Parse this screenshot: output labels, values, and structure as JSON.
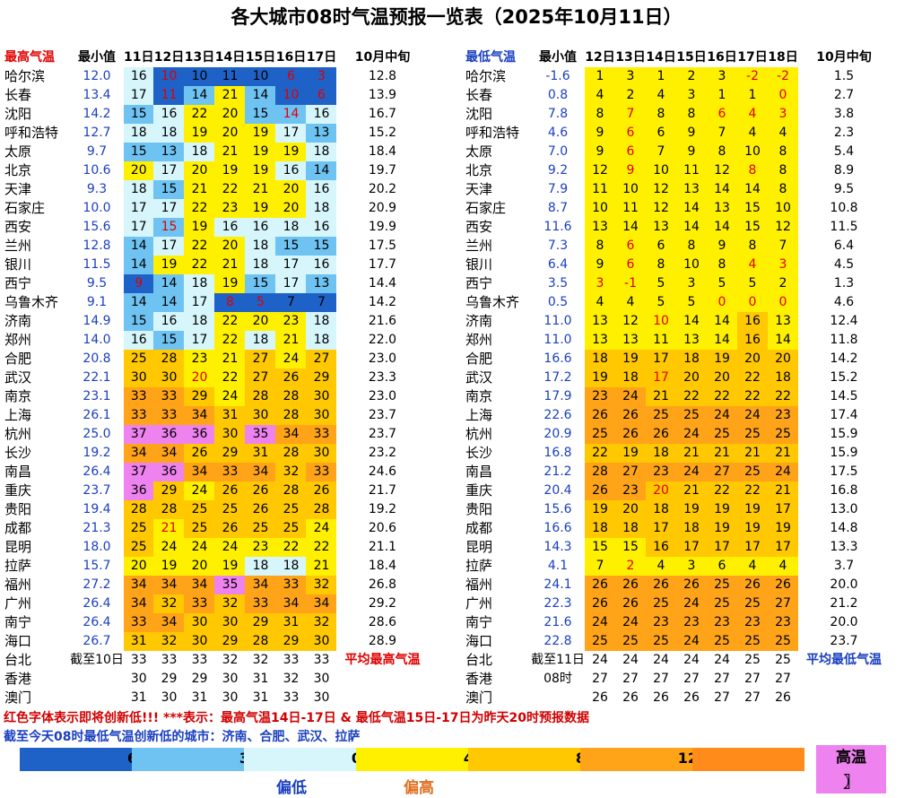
{
  "title": "各大城市08时气温预报一览表（2025年10月11日）",
  "colors": {
    "v1": "#1e62c8",
    "v2": "#6ec3f2",
    "v3": "#d6f6fb",
    "v4": "#fff000",
    "v5": "#ffc800",
    "v6": "#ffa318",
    "v7": "#ff8c1a",
    "hot": "#ee82ee",
    "red": "#e00000",
    "blue": "#1a3fc0"
  },
  "high": {
    "headers": [
      "最高气温",
      "最小值",
      "11日",
      "12日",
      "13日",
      "14日",
      "15日",
      "16日",
      "17日",
      "10月中旬"
    ],
    "footer_label": "平均最高气温",
    "rows": [
      {
        "city": "哈尔滨",
        "min": "12.0",
        "avg": "12.8",
        "v": [
          16,
          10,
          10,
          11,
          10,
          6,
          3
        ],
        "red": [
          1,
          5,
          6
        ]
      },
      {
        "city": "长春",
        "min": "13.4",
        "avg": "13.9",
        "v": [
          17,
          11,
          14,
          21,
          14,
          10,
          6
        ],
        "red": [
          1,
          5,
          6
        ]
      },
      {
        "city": "沈阳",
        "min": "14.2",
        "avg": "16.7",
        "v": [
          15,
          16,
          22,
          20,
          15,
          14,
          16
        ],
        "red": [
          5
        ]
      },
      {
        "city": "呼和浩特",
        "min": "12.7",
        "avg": "15.2",
        "v": [
          18,
          18,
          19,
          20,
          19,
          17,
          13
        ],
        "red": []
      },
      {
        "city": "太原",
        "min": "9.7",
        "avg": "18.4",
        "v": [
          15,
          13,
          18,
          21,
          19,
          19,
          18
        ],
        "red": []
      },
      {
        "city": "北京",
        "min": "10.6",
        "avg": "19.7",
        "v": [
          20,
          17,
          20,
          19,
          19,
          16,
          14
        ],
        "red": []
      },
      {
        "city": "天津",
        "min": "9.3",
        "avg": "20.2",
        "v": [
          18,
          15,
          21,
          22,
          21,
          20,
          16
        ],
        "red": []
      },
      {
        "city": "石家庄",
        "min": "10.0",
        "avg": "20.9",
        "v": [
          17,
          17,
          22,
          23,
          19,
          20,
          18
        ],
        "red": []
      },
      {
        "city": "西安",
        "min": "15.6",
        "avg": "19.9",
        "v": [
          17,
          15,
          19,
          16,
          16,
          18,
          16
        ],
        "red": [
          1
        ]
      },
      {
        "city": "兰州",
        "min": "12.8",
        "avg": "17.5",
        "v": [
          14,
          17,
          22,
          20,
          18,
          15,
          15
        ],
        "red": []
      },
      {
        "city": "银川",
        "min": "11.5",
        "avg": "17.7",
        "v": [
          14,
          19,
          22,
          21,
          18,
          17,
          16
        ],
        "red": []
      },
      {
        "city": "西宁",
        "min": "9.5",
        "avg": "14.4",
        "v": [
          9,
          14,
          18,
          19,
          15,
          17,
          13
        ],
        "red": [
          0
        ]
      },
      {
        "city": "乌鲁木齐",
        "min": "9.1",
        "avg": "14.2",
        "v": [
          14,
          14,
          17,
          8,
          5,
          7,
          7
        ],
        "red": [
          3,
          4
        ]
      },
      {
        "city": "济南",
        "min": "14.9",
        "avg": "21.6",
        "v": [
          15,
          16,
          18,
          22,
          20,
          23,
          18
        ],
        "red": []
      },
      {
        "city": "郑州",
        "min": "14.0",
        "avg": "22.0",
        "v": [
          16,
          15,
          17,
          22,
          18,
          21,
          18
        ],
        "red": []
      },
      {
        "city": "合肥",
        "min": "20.8",
        "avg": "23.0",
        "v": [
          25,
          28,
          23,
          21,
          27,
          24,
          27
        ],
        "red": []
      },
      {
        "city": "武汉",
        "min": "22.1",
        "avg": "23.3",
        "v": [
          30,
          30,
          20,
          22,
          27,
          26,
          29
        ],
        "red": [
          2
        ]
      },
      {
        "city": "南京",
        "min": "23.1",
        "avg": "23.0",
        "v": [
          33,
          33,
          29,
          24,
          28,
          28,
          30
        ],
        "red": []
      },
      {
        "city": "上海",
        "min": "26.1",
        "avg": "23.7",
        "v": [
          33,
          33,
          34,
          31,
          30,
          28,
          30
        ],
        "red": []
      },
      {
        "city": "杭州",
        "min": "25.0",
        "avg": "23.7",
        "v": [
          37,
          36,
          36,
          30,
          35,
          34,
          33
        ],
        "red": []
      },
      {
        "city": "长沙",
        "min": "19.2",
        "avg": "23.2",
        "v": [
          34,
          34,
          26,
          29,
          31,
          28,
          30
        ],
        "red": []
      },
      {
        "city": "南昌",
        "min": "26.4",
        "avg": "24.6",
        "v": [
          37,
          36,
          34,
          33,
          34,
          32,
          33
        ],
        "red": []
      },
      {
        "city": "重庆",
        "min": "23.7",
        "avg": "21.7",
        "v": [
          36,
          29,
          24,
          26,
          26,
          28,
          26
        ],
        "red": []
      },
      {
        "city": "贵阳",
        "min": "19.4",
        "avg": "19.2",
        "v": [
          28,
          28,
          25,
          25,
          26,
          25,
          28
        ],
        "red": []
      },
      {
        "city": "成都",
        "min": "21.3",
        "avg": "20.6",
        "v": [
          25,
          21,
          25,
          26,
          25,
          25,
          24
        ],
        "red": [
          1
        ]
      },
      {
        "city": "昆明",
        "min": "18.0",
        "avg": "21.1",
        "v": [
          25,
          24,
          24,
          24,
          23,
          22,
          22
        ],
        "red": []
      },
      {
        "city": "拉萨",
        "min": "15.7",
        "avg": "18.4",
        "v": [
          20,
          19,
          20,
          19,
          18,
          18,
          21
        ],
        "red": []
      },
      {
        "city": "福州",
        "min": "27.2",
        "avg": "26.8",
        "v": [
          34,
          34,
          34,
          35,
          34,
          33,
          32
        ],
        "red": []
      },
      {
        "city": "广州",
        "min": "26.4",
        "avg": "29.2",
        "v": [
          34,
          32,
          33,
          32,
          33,
          34,
          34
        ],
        "red": []
      },
      {
        "city": "南宁",
        "min": "26.4",
        "avg": "28.6",
        "v": [
          33,
          34,
          30,
          30,
          29,
          31,
          32
        ],
        "red": []
      },
      {
        "city": "海口",
        "min": "26.7",
        "avg": "28.9",
        "v": [
          31,
          32,
          30,
          29,
          28,
          29,
          30
        ],
        "red": []
      }
    ],
    "extra": [
      {
        "city": "台北",
        "min": "截至10日",
        "avg": "平均最高气温",
        "v": [
          33,
          33,
          33,
          32,
          32,
          33,
          33
        ]
      },
      {
        "city": "香港",
        "min": "",
        "avg": "",
        "v": [
          30,
          29,
          29,
          30,
          31,
          32,
          30
        ]
      },
      {
        "city": "澳门",
        "min": "",
        "avg": "",
        "v": [
          31,
          30,
          31,
          30,
          31,
          33,
          30
        ]
      }
    ]
  },
  "low": {
    "headers": [
      "最低气温",
      "最小值",
      "12日",
      "13日",
      "14日",
      "15日",
      "16日",
      "17日",
      "18日",
      "10月中旬"
    ],
    "footer_label": "平均最低气温",
    "rows": [
      {
        "city": "哈尔滨",
        "min": "-1.6",
        "avg": "1.5",
        "v": [
          1,
          3,
          1,
          2,
          3,
          -2,
          -2
        ],
        "red": [
          5,
          6
        ]
      },
      {
        "city": "长春",
        "min": "0.8",
        "avg": "2.7",
        "v": [
          4,
          2,
          4,
          3,
          1,
          1,
          0
        ],
        "red": [
          6
        ]
      },
      {
        "city": "沈阳",
        "min": "7.8",
        "avg": "3.8",
        "v": [
          8,
          7,
          8,
          8,
          6,
          4,
          3
        ],
        "red": [
          1,
          4,
          5,
          6
        ]
      },
      {
        "city": "呼和浩特",
        "min": "4.6",
        "avg": "2.3",
        "v": [
          9,
          6,
          6,
          9,
          7,
          4,
          4
        ],
        "red": [
          1
        ]
      },
      {
        "city": "太原",
        "min": "7.0",
        "avg": "5.4",
        "v": [
          9,
          6,
          7,
          9,
          8,
          10,
          8
        ],
        "red": [
          1
        ]
      },
      {
        "city": "北京",
        "min": "9.2",
        "avg": "8.9",
        "v": [
          12,
          9,
          10,
          11,
          12,
          8,
          8
        ],
        "red": [
          1,
          5
        ]
      },
      {
        "city": "天津",
        "min": "7.9",
        "avg": "9.5",
        "v": [
          11,
          10,
          12,
          13,
          14,
          14,
          8
        ],
        "red": []
      },
      {
        "city": "石家庄",
        "min": "8.7",
        "avg": "10.8",
        "v": [
          10,
          11,
          12,
          14,
          13,
          15,
          10
        ],
        "red": []
      },
      {
        "city": "西安",
        "min": "11.6",
        "avg": "11.5",
        "v": [
          13,
          14,
          13,
          14,
          14,
          15,
          12
        ],
        "red": []
      },
      {
        "city": "兰州",
        "min": "7.3",
        "avg": "6.4",
        "v": [
          8,
          6,
          6,
          8,
          9,
          8,
          7
        ],
        "red": [
          1
        ]
      },
      {
        "city": "银川",
        "min": "6.4",
        "avg": "4.5",
        "v": [
          9,
          6,
          8,
          10,
          8,
          4,
          3
        ],
        "red": [
          1,
          5,
          6
        ]
      },
      {
        "city": "西宁",
        "min": "3.5",
        "avg": "1.3",
        "v": [
          3,
          -1,
          5,
          3,
          5,
          5,
          2
        ],
        "red": [
          0,
          1
        ]
      },
      {
        "city": "乌鲁木齐",
        "min": "0.5",
        "avg": "4.6",
        "v": [
          4,
          4,
          5,
          5,
          0,
          0,
          0
        ],
        "red": [
          4,
          5,
          6
        ]
      },
      {
        "city": "济南",
        "min": "11.0",
        "avg": "12.4",
        "v": [
          13,
          12,
          10,
          14,
          14,
          16,
          13
        ],
        "red": [
          2
        ]
      },
      {
        "city": "郑州",
        "min": "11.0",
        "avg": "11.8",
        "v": [
          13,
          13,
          11,
          13,
          14,
          16,
          14
        ],
        "red": []
      },
      {
        "city": "合肥",
        "min": "16.6",
        "avg": "14.2",
        "v": [
          18,
          19,
          17,
          18,
          19,
          20,
          20
        ],
        "red": []
      },
      {
        "city": "武汉",
        "min": "17.2",
        "avg": "15.2",
        "v": [
          19,
          18,
          17,
          20,
          20,
          22,
          18
        ],
        "red": [
          2
        ]
      },
      {
        "city": "南京",
        "min": "17.9",
        "avg": "14.5",
        "v": [
          23,
          24,
          21,
          22,
          22,
          22,
          22
        ],
        "red": []
      },
      {
        "city": "上海",
        "min": "22.6",
        "avg": "17.4",
        "v": [
          26,
          26,
          25,
          25,
          24,
          24,
          23
        ],
        "red": []
      },
      {
        "city": "杭州",
        "min": "20.9",
        "avg": "15.9",
        "v": [
          25,
          26,
          26,
          24,
          25,
          25,
          25
        ],
        "red": []
      },
      {
        "city": "长沙",
        "min": "16.8",
        "avg": "15.9",
        "v": [
          22,
          19,
          18,
          21,
          21,
          21,
          21
        ],
        "red": []
      },
      {
        "city": "南昌",
        "min": "21.2",
        "avg": "17.5",
        "v": [
          28,
          27,
          23,
          24,
          27,
          25,
          24
        ],
        "red": []
      },
      {
        "city": "重庆",
        "min": "20.4",
        "avg": "16.8",
        "v": [
          26,
          23,
          20,
          21,
          22,
          22,
          21
        ],
        "red": [
          2
        ]
      },
      {
        "city": "贵阳",
        "min": "15.6",
        "avg": "13.0",
        "v": [
          19,
          20,
          18,
          19,
          19,
          19,
          17
        ],
        "red": []
      },
      {
        "city": "成都",
        "min": "16.6",
        "avg": "14.8",
        "v": [
          18,
          18,
          17,
          18,
          19,
          19,
          19
        ],
        "red": []
      },
      {
        "city": "昆明",
        "min": "14.3",
        "avg": "13.3",
        "v": [
          15,
          15,
          16,
          17,
          17,
          17,
          17
        ],
        "red": []
      },
      {
        "city": "拉萨",
        "min": "4.1",
        "avg": "3.7",
        "v": [
          7,
          2,
          4,
          3,
          6,
          4,
          4
        ],
        "red": [
          1
        ]
      },
      {
        "city": "福州",
        "min": "24.1",
        "avg": "20.0",
        "v": [
          26,
          26,
          26,
          26,
          25,
          26,
          26
        ],
        "red": []
      },
      {
        "city": "广州",
        "min": "22.3",
        "avg": "21.2",
        "v": [
          26,
          26,
          25,
          24,
          25,
          25,
          27
        ],
        "red": []
      },
      {
        "city": "南宁",
        "min": "21.6",
        "avg": "20.0",
        "v": [
          24,
          24,
          23,
          23,
          23,
          23,
          23
        ],
        "red": []
      },
      {
        "city": "海口",
        "min": "22.8",
        "avg": "23.7",
        "v": [
          25,
          25,
          25,
          24,
          25,
          25,
          25
        ],
        "red": []
      }
    ],
    "extra": [
      {
        "city": "台北",
        "min": "截至11日",
        "avg": "平均最低气温",
        "v": [
          24,
          24,
          24,
          24,
          24,
          25,
          25
        ]
      },
      {
        "city": "香港",
        "min": "08时",
        "avg": "",
        "v": [
          27,
          27,
          27,
          27,
          27,
          27,
          27
        ]
      },
      {
        "city": "澳门",
        "min": "",
        "avg": "",
        "v": [
          26,
          26,
          26,
          26,
          27,
          27,
          26
        ]
      }
    ]
  },
  "notes": {
    "line1": "红色字体表示即将创新低!!! ***表示：最高气温14日-17日 & 最低气温15日-17日为昨天20时预报数据",
    "line2": "截至今天08时最低气温创新低的城市：济南、合肥、武汉、拉萨"
  },
  "legend": {
    "ticks": [
      "6",
      "3",
      "0",
      "4",
      "8",
      "12"
    ],
    "low_label": "偏低",
    "high_label": "偏高",
    "hot_label": "高温",
    "hot_sub": "〗"
  }
}
